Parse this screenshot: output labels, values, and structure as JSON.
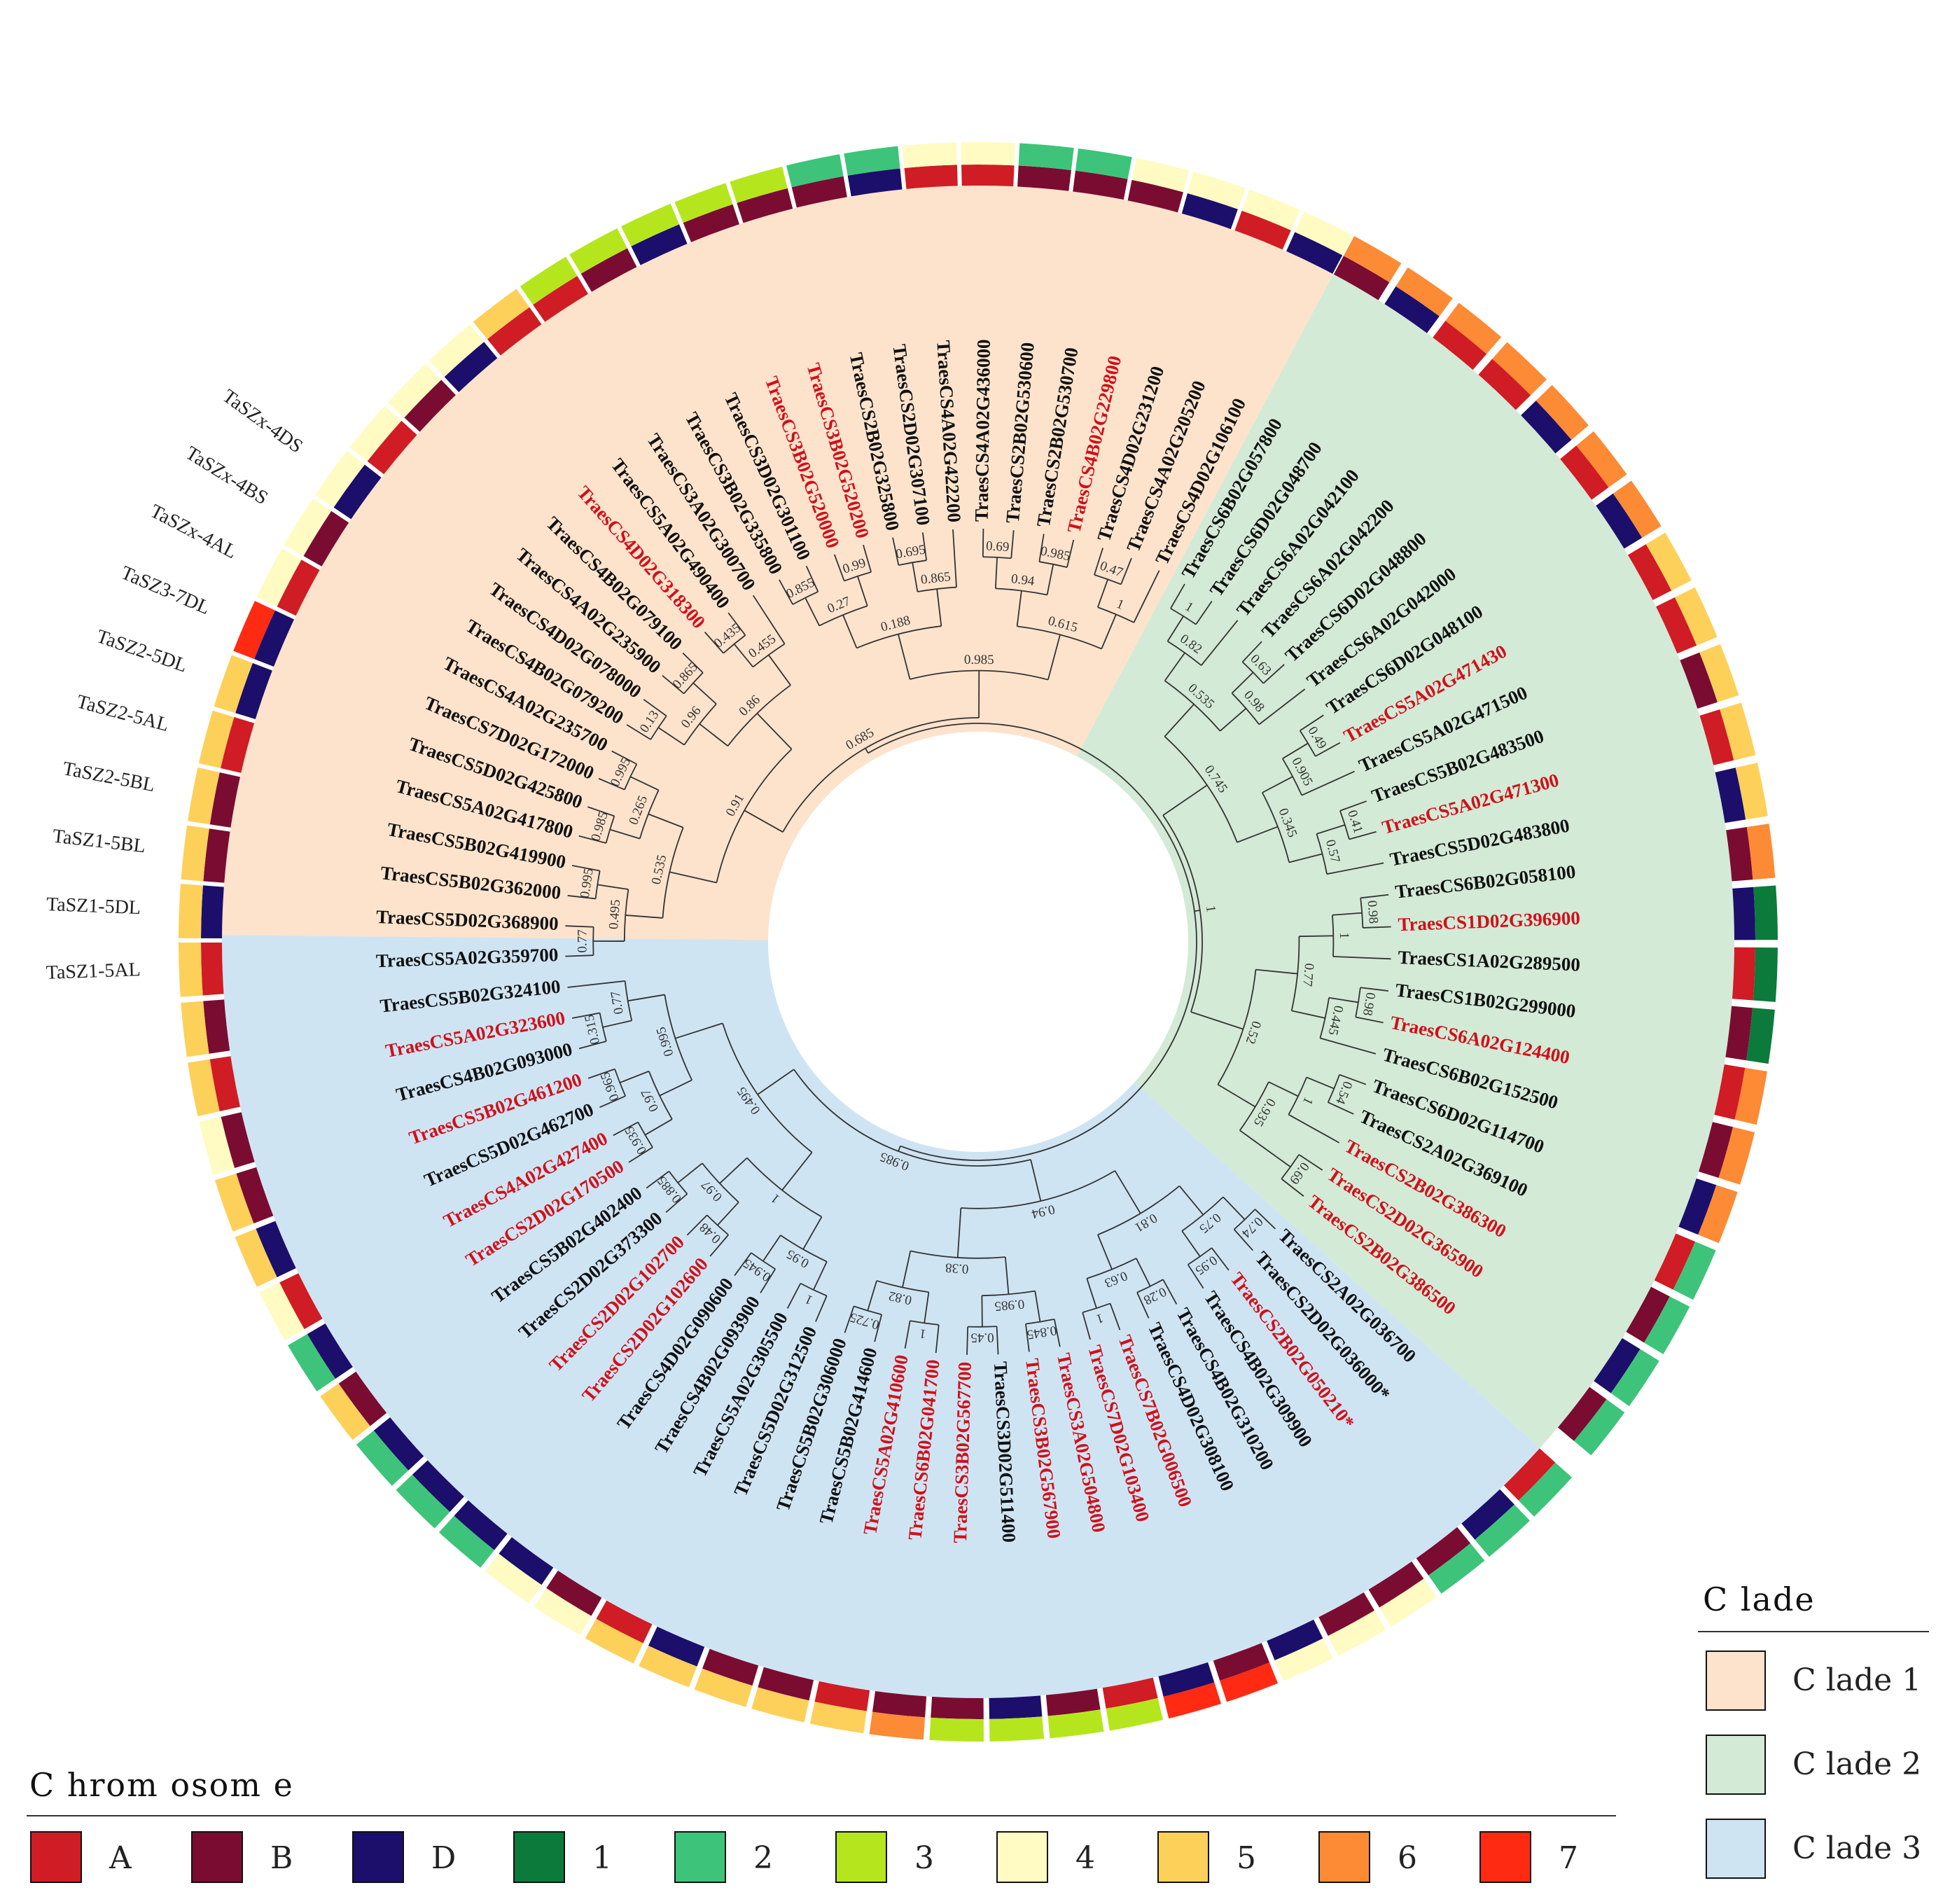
{
  "clades": [
    {
      "label": "C lade 1",
      "color": "#fde3cc",
      "start": 178,
      "end": 296
    },
    {
      "label": "C lade 2",
      "color": "#d3ead6",
      "start": 296,
      "end": 401
    },
    {
      "label": "C lade 3",
      "color": "#cfe4f3",
      "start": 178,
      "end": 41
    }
  ],
  "clade_legend_title": "C lade",
  "chromosome_legend_title": "C hrom osom e",
  "chromosome_legend": [
    {
      "label": "A",
      "color": "#d01c24"
    },
    {
      "label": "B",
      "color": "#7a0c32"
    },
    {
      "label": "D",
      "color": "#1b0f6b"
    },
    {
      "label": "1",
      "color": "#0b7a3b"
    },
    {
      "label": "2",
      "color": "#3dc47a"
    },
    {
      "label": "3",
      "color": "#b5e61d"
    },
    {
      "label": "4",
      "color": "#fffbc2"
    },
    {
      "label": "5",
      "color": "#fdd05a"
    },
    {
      "label": "6",
      "color": "#fd8a34"
    },
    {
      "label": "7",
      "color": "#ff2a12"
    }
  ],
  "leaves": [
    {
      "name": "TraesCS5A02G359700",
      "color": "black",
      "sub": "A",
      "chr": "5",
      "ann": "TaSZ1-5AL"
    },
    {
      "name": "TraesCS5D02G368900",
      "color": "black",
      "sub": "D",
      "chr": "5",
      "ann": "TaSZ1-5DL"
    },
    {
      "name": "TraesCS5B02G362000",
      "color": "black",
      "sub": "B",
      "chr": "5",
      "ann": "TaSZ1-5BL"
    },
    {
      "name": "TraesCS5B02G419900",
      "color": "black",
      "sub": "B",
      "chr": "5",
      "ann": "TaSZ2-5BL"
    },
    {
      "name": "TraesCS5A02G417800",
      "color": "black",
      "sub": "A",
      "chr": "5",
      "ann": "TaSZ2-5AL"
    },
    {
      "name": "TraesCS5D02G425800",
      "color": "black",
      "sub": "D",
      "chr": "5",
      "ann": "TaSZ2-5DL"
    },
    {
      "name": "TraesCS7D02G172000",
      "color": "black",
      "sub": "D",
      "chr": "7",
      "ann": "TaSZ3-7DL"
    },
    {
      "name": "TraesCS4A02G235700",
      "color": "black",
      "sub": "A",
      "chr": "4",
      "ann": "TaSZx-4AL"
    },
    {
      "name": "TraesCS4B02G079200",
      "color": "black",
      "sub": "B",
      "chr": "4",
      "ann": "TaSZx-4BS"
    },
    {
      "name": "TraesCS4D02G078000",
      "color": "black",
      "sub": "D",
      "chr": "4",
      "ann": "TaSZx-4DS"
    },
    {
      "name": "TraesCS4A02G235900",
      "color": "black",
      "sub": "A",
      "chr": "4"
    },
    {
      "name": "TraesCS4B02G079100",
      "color": "black",
      "sub": "B",
      "chr": "4"
    },
    {
      "name": "TraesCS4D02G318300",
      "color": "red",
      "sub": "D",
      "chr": "4"
    },
    {
      "name": "TraesCS5A02G490400",
      "color": "black",
      "sub": "A",
      "chr": "5"
    },
    {
      "name": "TraesCS3A02G300700",
      "color": "black",
      "sub": "A",
      "chr": "3"
    },
    {
      "name": "TraesCS3B02G335800",
      "color": "black",
      "sub": "B",
      "chr": "3"
    },
    {
      "name": "TraesCS3D02G301100",
      "color": "black",
      "sub": "D",
      "chr": "3"
    },
    {
      "name": "TraesCS3B02G520000",
      "color": "red",
      "sub": "B",
      "chr": "3"
    },
    {
      "name": "TraesCS3B02G520200",
      "color": "red",
      "sub": "B",
      "chr": "3"
    },
    {
      "name": "TraesCS2B02G325800",
      "color": "black",
      "sub": "B",
      "chr": "2"
    },
    {
      "name": "TraesCS2D02G307100",
      "color": "black",
      "sub": "D",
      "chr": "2"
    },
    {
      "name": "TraesCS4A02G422200",
      "color": "black",
      "sub": "A",
      "chr": "4"
    },
    {
      "name": "TraesCS4A02G436000",
      "color": "black",
      "sub": "A",
      "chr": "4"
    },
    {
      "name": "TraesCS2B02G530600",
      "color": "black",
      "sub": "B",
      "chr": "2"
    },
    {
      "name": "TraesCS2B02G530700",
      "color": "black",
      "sub": "B",
      "chr": "2"
    },
    {
      "name": "TraesCS4B02G229800",
      "color": "red",
      "sub": "B",
      "chr": "4"
    },
    {
      "name": "TraesCS4D02G231200",
      "color": "black",
      "sub": "D",
      "chr": "4"
    },
    {
      "name": "TraesCS4A02G205200",
      "color": "black",
      "sub": "A",
      "chr": "4"
    },
    {
      "name": "TraesCS4D02G106100",
      "color": "black",
      "sub": "D",
      "chr": "4"
    },
    {
      "name": "TraesCS6B02G057800",
      "color": "black",
      "sub": "B",
      "chr": "6"
    },
    {
      "name": "TraesCS6D02G048700",
      "color": "black",
      "sub": "D",
      "chr": "6"
    },
    {
      "name": "TraesCS6A02G042100",
      "color": "black",
      "sub": "A",
      "chr": "6"
    },
    {
      "name": "TraesCS6A02G042200",
      "color": "black",
      "sub": "A",
      "chr": "6"
    },
    {
      "name": "TraesCS6D02G048800",
      "color": "black",
      "sub": "D",
      "chr": "6"
    },
    {
      "name": "TraesCS6A02G042000",
      "color": "black",
      "sub": "A",
      "chr": "6"
    },
    {
      "name": "TraesCS6D02G048100",
      "color": "black",
      "sub": "D",
      "chr": "6"
    },
    {
      "name": "TraesCS5A02G471430",
      "color": "red",
      "sub": "A",
      "chr": "5"
    },
    {
      "name": "TraesCS5A02G471500",
      "color": "black",
      "sub": "A",
      "chr": "5"
    },
    {
      "name": "TraesCS5B02G483500",
      "color": "black",
      "sub": "B",
      "chr": "5"
    },
    {
      "name": "TraesCS5A02G471300",
      "color": "red",
      "sub": "A",
      "chr": "5"
    },
    {
      "name": "TraesCS5D02G483800",
      "color": "black",
      "sub": "D",
      "chr": "5"
    },
    {
      "name": "TraesCS6B02G058100",
      "color": "black",
      "sub": "B",
      "chr": "6"
    },
    {
      "name": "TraesCS1D02G396900",
      "color": "red",
      "sub": "D",
      "chr": "1"
    },
    {
      "name": "TraesCS1A02G289500",
      "color": "black",
      "sub": "A",
      "chr": "1"
    },
    {
      "name": "TraesCS1B02G299000",
      "color": "black",
      "sub": "B",
      "chr": "1"
    },
    {
      "name": "TraesCS6A02G124400",
      "color": "red",
      "sub": "A",
      "chr": "6"
    },
    {
      "name": "TraesCS6B02G152500",
      "color": "black",
      "sub": "B",
      "chr": "6"
    },
    {
      "name": "TraesCS6D02G114700",
      "color": "black",
      "sub": "D",
      "chr": "6"
    },
    {
      "name": "TraesCS2A02G369100",
      "color": "black",
      "sub": "A",
      "chr": "2"
    },
    {
      "name": "TraesCS2B02G386300",
      "color": "red",
      "sub": "B",
      "chr": "2"
    },
    {
      "name": "TraesCS2D02G365900",
      "color": "red",
      "sub": "D",
      "chr": "2"
    },
    {
      "name": "TraesCS2B02G386500",
      "color": "red",
      "sub": "B",
      "chr": "2"
    },
    {
      "name": "TraesCS2A02G036700",
      "color": "black",
      "sub": "A",
      "chr": "2"
    },
    {
      "name": "TraesCS2D02G036000*",
      "color": "black",
      "sub": "D",
      "chr": "2"
    },
    {
      "name": "TraesCS2B02G050210*",
      "color": "red",
      "sub": "B",
      "chr": "2"
    },
    {
      "name": "TraesCS4B02G309900",
      "color": "black",
      "sub": "B",
      "chr": "4"
    },
    {
      "name": "TraesCS4B02G310200",
      "color": "black",
      "sub": "B",
      "chr": "4"
    },
    {
      "name": "TraesCS4D02G308100",
      "color": "black",
      "sub": "D",
      "chr": "4"
    },
    {
      "name": "TraesCS7B02G006500",
      "color": "red",
      "sub": "B",
      "chr": "7"
    },
    {
      "name": "TraesCS7D02G103400",
      "color": "red",
      "sub": "D",
      "chr": "7"
    },
    {
      "name": "TraesCS3A02G504800",
      "color": "red",
      "sub": "A",
      "chr": "3"
    },
    {
      "name": "TraesCS3B02G567900",
      "color": "red",
      "sub": "B",
      "chr": "3"
    },
    {
      "name": "TraesCS3D02G511400",
      "color": "black",
      "sub": "D",
      "chr": "3"
    },
    {
      "name": "TraesCS3B02G567700",
      "color": "red",
      "sub": "B",
      "chr": "3"
    },
    {
      "name": "TraesCS6B02G041700",
      "color": "red",
      "sub": "B",
      "chr": "6"
    },
    {
      "name": "TraesCS5A02G410600",
      "color": "red",
      "sub": "A",
      "chr": "5"
    },
    {
      "name": "TraesCS5B02G414600",
      "color": "black",
      "sub": "B",
      "chr": "5"
    },
    {
      "name": "TraesCS5B02G306000",
      "color": "black",
      "sub": "B",
      "chr": "5"
    },
    {
      "name": "TraesCS5D02G312500",
      "color": "black",
      "sub": "D",
      "chr": "5"
    },
    {
      "name": "TraesCS5A02G305500",
      "color": "black",
      "sub": "A",
      "chr": "5"
    },
    {
      "name": "TraesCS4B02G093900",
      "color": "black",
      "sub": "B",
      "chr": "4"
    },
    {
      "name": "TraesCS4D02G090600",
      "color": "black",
      "sub": "D",
      "chr": "4"
    },
    {
      "name": "TraesCS2D02G102600",
      "color": "red",
      "sub": "D",
      "chr": "2"
    },
    {
      "name": "TraesCS2D02G102700",
      "color": "red",
      "sub": "D",
      "chr": "2"
    },
    {
      "name": "TraesCS2D02G373300",
      "color": "black",
      "sub": "D",
      "chr": "2"
    },
    {
      "name": "TraesCS5B02G402400",
      "color": "black",
      "sub": "B",
      "chr": "5"
    },
    {
      "name": "TraesCS2D02G170500",
      "color": "red",
      "sub": "D",
      "chr": "2"
    },
    {
      "name": "TraesCS4A02G427400",
      "color": "red",
      "sub": "A",
      "chr": "4"
    },
    {
      "name": "TraesCS5D02G462700",
      "color": "black",
      "sub": "D",
      "chr": "5"
    },
    {
      "name": "TraesCS5B02G461200",
      "color": "red",
      "sub": "B",
      "chr": "5"
    },
    {
      "name": "TraesCS4B02G093000",
      "color": "black",
      "sub": "B",
      "chr": "4"
    },
    {
      "name": "TraesCS5A02G323600",
      "color": "red",
      "sub": "A",
      "chr": "5"
    },
    {
      "name": "TraesCS5B02G324100",
      "color": "black",
      "sub": "B",
      "chr": "5"
    }
  ],
  "support_values": [
    "0.77",
    "0.995",
    "0.495",
    "0.985",
    "0.995",
    "0.265",
    "0.535",
    "0.13",
    "0.865",
    "0.96",
    "0.435",
    "0.455",
    "0.86",
    "0.91",
    "0.855",
    "0.99",
    "0.27",
    "0.695",
    "0.865",
    "0.188",
    "0.69",
    "0.985",
    "0.94",
    "0.47",
    "1",
    "0.615",
    "0.985",
    "0.685",
    "1",
    "0.82",
    "0.63",
    "0.98",
    "0.535",
    "0.49",
    "0.905",
    "0.41",
    "0.57",
    "0.345",
    "0.745",
    "0.98",
    "1",
    "0.98",
    "0.445",
    "0.77",
    "0.54",
    "1",
    "0.69",
    "0.935",
    "0.52",
    "1",
    "0.74",
    "0.95",
    "0.75",
    "0.28",
    "1",
    "0.63",
    "0.81",
    "0.845",
    "0.45",
    "0.985",
    "1",
    "0.725",
    "0.82",
    "0.38",
    "0.94",
    "1",
    "0.945",
    "0.95",
    "0.48",
    "0.885",
    "0.97",
    "1",
    "0.935",
    "0.965",
    "0.97",
    "0.315"
  ]
}
